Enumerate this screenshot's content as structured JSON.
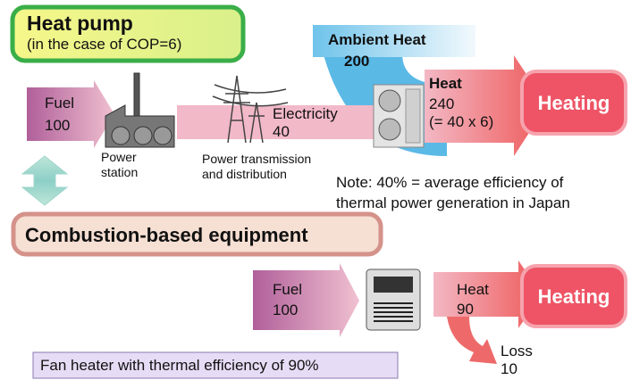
{
  "heat_pump": {
    "title": "Heat pump",
    "subtitle": "(in the case of COP=6)",
    "fuel": {
      "label": "Fuel",
      "value": 100
    },
    "power_station": [
      "Power",
      "station"
    ],
    "transmission": [
      "Power transmission",
      "and distribution"
    ],
    "electricity": {
      "label": "Electricity",
      "value": 40
    },
    "ambient": {
      "label": "Ambient Heat",
      "value": 200
    },
    "heat": {
      "label": "Heat",
      "value": 240,
      "formula": "(= 40 x 6)"
    },
    "output": "Heating",
    "note": [
      "Note: 40% = average efficiency of",
      "thermal power generation in Japan"
    ]
  },
  "combustion": {
    "title": "Combustion-based equipment",
    "fuel": {
      "label": "Fuel",
      "value": 100
    },
    "heat": {
      "label": "Heat",
      "value": 90
    },
    "loss": {
      "label": "Loss",
      "value": 10
    },
    "output": "Heating",
    "caption": "Fan heater with thermal efficiency of 90%"
  }
}
